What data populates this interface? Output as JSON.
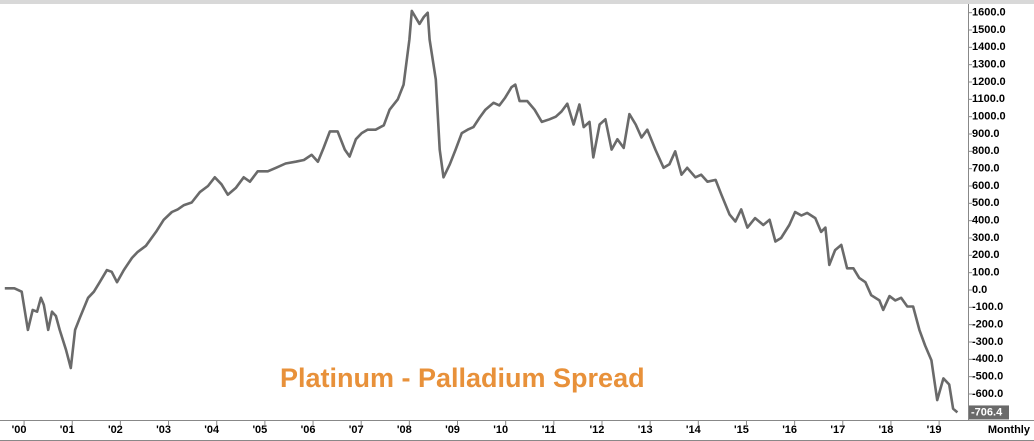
{
  "chart_data": {
    "type": "line",
    "title": "Platinum - Palladium Spread",
    "frequency": "Monthly",
    "xlim": [
      1999.5,
      2019.6
    ],
    "xticks": [
      {
        "value": 2000,
        "label": "'00"
      },
      {
        "value": 2001,
        "label": "'01"
      },
      {
        "value": 2002,
        "label": "'02"
      },
      {
        "value": 2003,
        "label": "'03"
      },
      {
        "value": 2004,
        "label": "'04"
      },
      {
        "value": 2005,
        "label": "'05"
      },
      {
        "value": 2006,
        "label": "'06"
      },
      {
        "value": 2007,
        "label": "'07"
      },
      {
        "value": 2008,
        "label": "'08"
      },
      {
        "value": 2009,
        "label": "'09"
      },
      {
        "value": 2010,
        "label": "'10"
      },
      {
        "value": 2011,
        "label": "'11"
      },
      {
        "value": 2012,
        "label": "'12"
      },
      {
        "value": 2013,
        "label": "'13"
      },
      {
        "value": 2014,
        "label": "'14"
      },
      {
        "value": 2015,
        "label": "'15"
      },
      {
        "value": 2016,
        "label": "'16"
      },
      {
        "value": 2017,
        "label": "'17"
      },
      {
        "value": 2018,
        "label": "'18"
      },
      {
        "value": 2019,
        "label": "'19"
      }
    ],
    "ylim": [
      -750,
      1650
    ],
    "yticks": [
      {
        "value": 1600,
        "label": "1600.0"
      },
      {
        "value": 1500,
        "label": "1500.0"
      },
      {
        "value": 1400,
        "label": "1400.0"
      },
      {
        "value": 1300,
        "label": "1300.0"
      },
      {
        "value": 1200,
        "label": "1200.0"
      },
      {
        "value": 1100,
        "label": "1100.0"
      },
      {
        "value": 1000,
        "label": "1000.0"
      },
      {
        "value": 900,
        "label": "900.0"
      },
      {
        "value": 800,
        "label": "800.0"
      },
      {
        "value": 700,
        "label": "700.0"
      },
      {
        "value": 600,
        "label": "600.0"
      },
      {
        "value": 500,
        "label": "500.0"
      },
      {
        "value": 400,
        "label": "400.0"
      },
      {
        "value": 300,
        "label": "300.0"
      },
      {
        "value": 200,
        "label": "200.0"
      },
      {
        "value": 100,
        "label": "100.0"
      },
      {
        "value": 0,
        "label": "0.0"
      },
      {
        "value": -100,
        "label": "-100.0"
      },
      {
        "value": -200,
        "label": "-200.0"
      },
      {
        "value": -300,
        "label": "-300.0"
      },
      {
        "value": -400,
        "label": "-400.0"
      },
      {
        "value": -500,
        "label": "-500.0"
      },
      {
        "value": -600,
        "label": "-600.0"
      }
    ],
    "x": [
      1999.6,
      1999.8,
      1999.95,
      2000.08,
      2000.18,
      2000.27,
      2000.35,
      2000.41,
      2000.5,
      2000.58,
      2000.66,
      2000.74,
      2000.87,
      2000.97,
      2001.06,
      2001.16,
      2001.33,
      2001.45,
      2001.57,
      2001.72,
      2001.82,
      2001.93,
      2002.07,
      2002.24,
      2002.36,
      2002.53,
      2002.74,
      2002.9,
      2003.07,
      2003.19,
      2003.32,
      2003.48,
      2003.65,
      2003.82,
      2003.96,
      2004.1,
      2004.23,
      2004.4,
      2004.56,
      2004.69,
      2004.85,
      2005.06,
      2005.23,
      2005.43,
      2005.64,
      2005.81,
      2005.97,
      2006.1,
      2006.22,
      2006.35,
      2006.51,
      2006.66,
      2006.76,
      2006.89,
      2007.01,
      2007.13,
      2007.3,
      2007.47,
      2007.59,
      2007.76,
      2007.88,
      2008.0,
      2008.05,
      2008.21,
      2008.3,
      2008.38,
      2008.42,
      2008.55,
      2008.63,
      2008.71,
      2008.84,
      2008.96,
      2009.09,
      2009.21,
      2009.33,
      2009.46,
      2009.58,
      2009.75,
      2009.87,
      2009.99,
      2010.12,
      2010.2,
      2010.29,
      2010.45,
      2010.6,
      2010.75,
      2010.91,
      2011.04,
      2011.16,
      2011.28,
      2011.41,
      2011.53,
      2011.62,
      2011.74,
      2011.82,
      2011.95,
      2012.07,
      2012.2,
      2012.32,
      2012.45,
      2012.57,
      2012.7,
      2012.82,
      2012.94,
      2013.11,
      2013.28,
      2013.4,
      2013.52,
      2013.65,
      2013.77,
      2013.94,
      2014.06,
      2014.19,
      2014.36,
      2014.48,
      2014.65,
      2014.77,
      2014.89,
      2015.02,
      2015.18,
      2015.35,
      2015.48,
      2015.6,
      2015.72,
      2015.89,
      2016.01,
      2016.14,
      2016.26,
      2016.43,
      2016.55,
      2016.64,
      2016.72,
      2016.84,
      2016.97,
      2017.09,
      2017.22,
      2017.34,
      2017.47,
      2017.59,
      2017.76,
      2017.84,
      2017.97,
      2018.09,
      2018.21,
      2018.34,
      2018.46,
      2018.59,
      2018.71,
      2018.84,
      2018.96,
      2019.09,
      2019.21,
      2019.29,
      2019.38
    ],
    "series": [
      {
        "color": "#6a6a6a",
        "values": [
          10,
          10,
          -10,
          -230,
          -115,
          -125,
          -45,
          -85,
          -230,
          -125,
          -150,
          -230,
          -345,
          -450,
          -230,
          -160,
          -45,
          -10,
          45,
          115,
          105,
          45,
          115,
          185,
          220,
          255,
          335,
          405,
          450,
          465,
          490,
          505,
          565,
          600,
          650,
          610,
          550,
          590,
          650,
          625,
          685,
          685,
          705,
          730,
          740,
          750,
          780,
          740,
          820,
          915,
          915,
          810,
          770,
          870,
          905,
          925,
          925,
          950,
          1040,
          1100,
          1185,
          1445,
          1610,
          1535,
          1575,
          1600,
          1445,
          1215,
          810,
          650,
          725,
          810,
          905,
          925,
          940,
          995,
          1040,
          1080,
          1065,
          1110,
          1170,
          1185,
          1090,
          1090,
          1040,
          970,
          985,
          1000,
          1030,
          1075,
          955,
          1070,
          940,
          970,
          765,
          955,
          985,
          810,
          870,
          820,
          1015,
          955,
          880,
          925,
          810,
          705,
          725,
          800,
          665,
          705,
          650,
          665,
          625,
          635,
          550,
          435,
          395,
          465,
          360,
          415,
          375,
          405,
          280,
          300,
          375,
          450,
          430,
          445,
          415,
          335,
          360,
          145,
          230,
          260,
          125,
          125,
          70,
          45,
          -30,
          -60,
          -115,
          -35,
          -60,
          -45,
          -95,
          -95,
          -230,
          -320,
          -405,
          -635,
          -510,
          -545,
          -685,
          -706.4
        ]
      }
    ]
  }
}
